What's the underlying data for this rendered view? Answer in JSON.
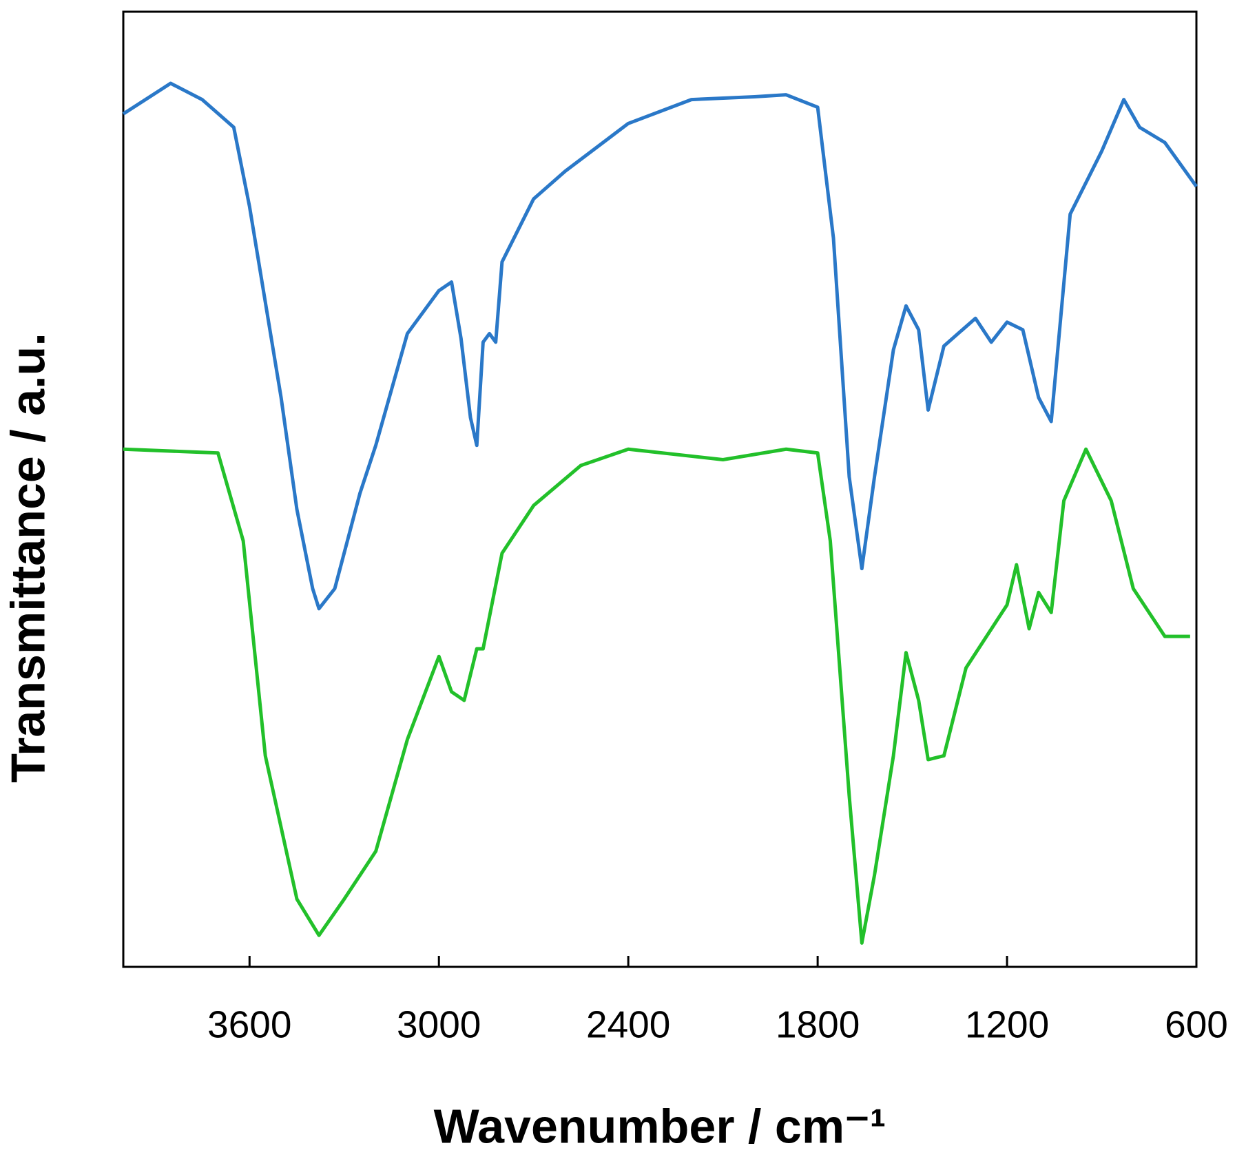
{
  "chart_data": {
    "type": "line",
    "x_label": "Wavenumber / cm⁻¹",
    "y_label": "Transmittance / a.u.",
    "xlim": [
      4000,
      600
    ],
    "xticks": [
      3600,
      3000,
      2400,
      1800,
      1200,
      600
    ],
    "ylim": [
      0,
      100
    ],
    "series": [
      {
        "color": "#2a78c8",
        "x": [
          4000,
          3850,
          3750,
          3650,
          3600,
          3500,
          3450,
          3400,
          3380,
          3330,
          3250,
          3200,
          3100,
          3000,
          2960,
          2930,
          2900,
          2880,
          2860,
          2840,
          2820,
          2800,
          2700,
          2600,
          2400,
          2200,
          2000,
          1900,
          1800,
          1750,
          1700,
          1660,
          1620,
          1560,
          1520,
          1480,
          1450,
          1400,
          1300,
          1250,
          1200,
          1150,
          1100,
          1060,
          1000,
          900,
          830,
          780,
          700,
          600
        ],
        "values": [
          89.3,
          92.5,
          90.8,
          87.9,
          79.6,
          59.6,
          47.9,
          39.6,
          37.5,
          39.6,
          49.6,
          54.6,
          66.3,
          70.8,
          71.7,
          65.8,
          57.5,
          54.6,
          65.4,
          66.3,
          65.4,
          73.8,
          80.4,
          83.3,
          88.3,
          90.8,
          91.1,
          91.3,
          90,
          76.3,
          51.3,
          41.7,
          51.3,
          64.6,
          69.2,
          66.7,
          58.3,
          65,
          67.9,
          65.4,
          67.5,
          66.7,
          59.6,
          57.1,
          78.8,
          85.4,
          90.8,
          87.9,
          86.3,
          81.7
        ]
      },
      {
        "color": "#22c02a",
        "x": [
          4000,
          3700,
          3620,
          3550,
          3450,
          3380,
          3300,
          3200,
          3100,
          3000,
          2960,
          2920,
          2880,
          2860,
          2800,
          2700,
          2550,
          2400,
          2100,
          1900,
          1800,
          1760,
          1700,
          1660,
          1620,
          1560,
          1520,
          1480,
          1450,
          1400,
          1330,
          1200,
          1170,
          1130,
          1100,
          1060,
          1020,
          950,
          870,
          800,
          700,
          620
        ],
        "values": [
          54.2,
          53.8,
          44.6,
          22.1,
          7.1,
          3.3,
          7.1,
          12.1,
          23.8,
          32.5,
          28.8,
          27.9,
          33.3,
          33.3,
          43.3,
          48.3,
          52.5,
          54.2,
          53.1,
          54.2,
          53.8,
          44.6,
          17.9,
          2.5,
          9.6,
          22.1,
          32.9,
          27.9,
          21.7,
          22.1,
          31.3,
          37.9,
          42.1,
          35.4,
          39.2,
          37.1,
          48.8,
          54.2,
          48.8,
          39.6,
          34.6,
          34.6
        ]
      }
    ]
  }
}
